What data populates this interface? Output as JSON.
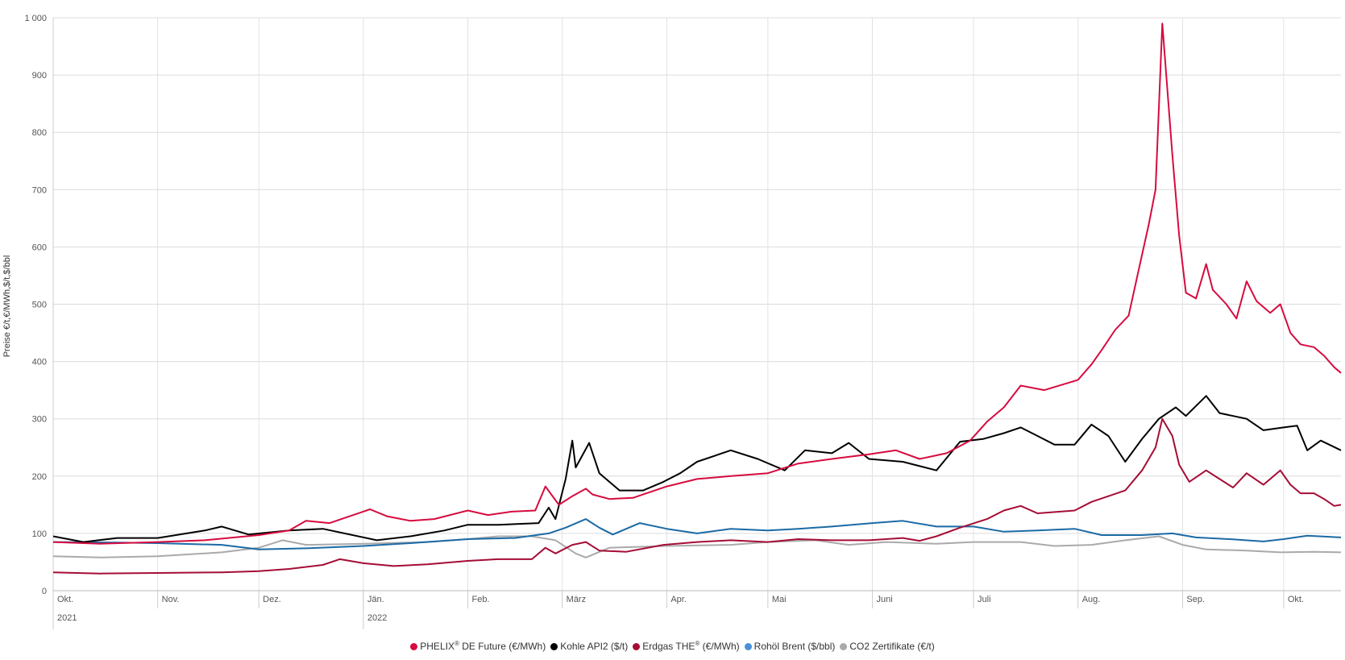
{
  "chart_data": {
    "type": "line",
    "ylabel": "Preise €/t,€/MWh,$/t,$/bbl",
    "ylim": [
      0,
      1000
    ],
    "yticks": [
      0,
      100,
      200,
      300,
      400,
      500,
      600,
      700,
      800,
      900,
      1000
    ],
    "ytick_labels": [
      "0",
      "100",
      "200",
      "300",
      "400",
      "500",
      "600",
      "700",
      "800",
      "900",
      "1 000"
    ],
    "x_range": [
      "2021-10-01",
      "2022-10-18"
    ],
    "month_ticks": [
      {
        "date": "2021-10-01",
        "label": "Okt."
      },
      {
        "date": "2021-11-01",
        "label": "Nov."
      },
      {
        "date": "2021-12-01",
        "label": "Dez."
      },
      {
        "date": "2022-01-01",
        "label": "Jän."
      },
      {
        "date": "2022-02-01",
        "label": "Feb."
      },
      {
        "date": "2022-03-01",
        "label": "März"
      },
      {
        "date": "2022-04-01",
        "label": "Apr."
      },
      {
        "date": "2022-05-01",
        "label": "Mai"
      },
      {
        "date": "2022-06-01",
        "label": "Juni"
      },
      {
        "date": "2022-07-01",
        "label": "Juli"
      },
      {
        "date": "2022-08-01",
        "label": "Aug."
      },
      {
        "date": "2022-09-01",
        "label": "Sep."
      },
      {
        "date": "2022-10-01",
        "label": "Okt."
      }
    ],
    "year_ticks": [
      {
        "date": "2021-10-01",
        "label": "2021"
      },
      {
        "date": "2022-01-01",
        "label": "2022"
      }
    ],
    "grid": true,
    "legend_position": "bottom",
    "series": [
      {
        "name": "PHELIX® DE Future (€/MWh)",
        "legend_main": "PHELIX",
        "legend_sup": "®",
        "legend_rest": " DE Future (€/MWh)",
        "color": "#d60b3f",
        "points": [
          [
            "2021-10-01",
            85
          ],
          [
            "2021-10-15",
            82
          ],
          [
            "2021-11-01",
            85
          ],
          [
            "2021-11-15",
            88
          ],
          [
            "2021-12-01",
            97
          ],
          [
            "2021-12-10",
            105
          ],
          [
            "2021-12-15",
            122
          ],
          [
            "2021-12-22",
            118
          ],
          [
            "2022-01-03",
            142
          ],
          [
            "2022-01-08",
            130
          ],
          [
            "2022-01-15",
            122
          ],
          [
            "2022-01-22",
            125
          ],
          [
            "2022-02-01",
            140
          ],
          [
            "2022-02-07",
            132
          ],
          [
            "2022-02-14",
            138
          ],
          [
            "2022-02-21",
            140
          ],
          [
            "2022-02-24",
            182
          ],
          [
            "2022-02-28",
            150
          ],
          [
            "2022-03-04",
            165
          ],
          [
            "2022-03-08",
            178
          ],
          [
            "2022-03-10",
            168
          ],
          [
            "2022-03-15",
            160
          ],
          [
            "2022-03-22",
            162
          ],
          [
            "2022-04-01",
            182
          ],
          [
            "2022-04-10",
            195
          ],
          [
            "2022-04-20",
            200
          ],
          [
            "2022-05-01",
            205
          ],
          [
            "2022-05-10",
            222
          ],
          [
            "2022-05-20",
            230
          ],
          [
            "2022-05-31",
            238
          ],
          [
            "2022-06-08",
            245
          ],
          [
            "2022-06-15",
            230
          ],
          [
            "2022-06-23",
            240
          ],
          [
            "2022-06-30",
            262
          ],
          [
            "2022-07-05",
            295
          ],
          [
            "2022-07-10",
            320
          ],
          [
            "2022-07-15",
            358
          ],
          [
            "2022-07-22",
            350
          ],
          [
            "2022-08-01",
            368
          ],
          [
            "2022-08-05",
            395
          ],
          [
            "2022-08-08",
            420
          ],
          [
            "2022-08-12",
            455
          ],
          [
            "2022-08-16",
            480
          ],
          [
            "2022-08-19",
            560
          ],
          [
            "2022-08-22",
            640
          ],
          [
            "2022-08-24",
            700
          ],
          [
            "2022-08-26",
            990
          ],
          [
            "2022-08-29",
            760
          ],
          [
            "2022-08-31",
            620
          ],
          [
            "2022-09-02",
            520
          ],
          [
            "2022-09-05",
            510
          ],
          [
            "2022-09-08",
            570
          ],
          [
            "2022-09-10",
            525
          ],
          [
            "2022-09-14",
            500
          ],
          [
            "2022-09-17",
            475
          ],
          [
            "2022-09-20",
            540
          ],
          [
            "2022-09-23",
            505
          ],
          [
            "2022-09-27",
            485
          ],
          [
            "2022-09-30",
            500
          ],
          [
            "2022-10-03",
            450
          ],
          [
            "2022-10-06",
            430
          ],
          [
            "2022-10-10",
            425
          ],
          [
            "2022-10-13",
            410
          ],
          [
            "2022-10-16",
            390
          ],
          [
            "2022-10-18",
            380
          ]
        ]
      },
      {
        "name": "Kohle API2 ($/t)",
        "legend_main": "Kohle API2 ($/t)",
        "legend_sup": "",
        "legend_rest": "",
        "color": "#000000",
        "points": [
          [
            "2021-10-01",
            95
          ],
          [
            "2021-10-10",
            85
          ],
          [
            "2021-10-20",
            92
          ],
          [
            "2021-11-01",
            92
          ],
          [
            "2021-11-15",
            105
          ],
          [
            "2021-11-20",
            112
          ],
          [
            "2021-11-28",
            98
          ],
          [
            "2021-12-10",
            105
          ],
          [
            "2021-12-20",
            108
          ],
          [
            "2022-01-05",
            88
          ],
          [
            "2022-01-15",
            95
          ],
          [
            "2022-01-25",
            105
          ],
          [
            "2022-02-01",
            115
          ],
          [
            "2022-02-10",
            115
          ],
          [
            "2022-02-22",
            118
          ],
          [
            "2022-02-25",
            145
          ],
          [
            "2022-02-27",
            125
          ],
          [
            "2022-03-02",
            195
          ],
          [
            "2022-03-04",
            262
          ],
          [
            "2022-03-05",
            215
          ],
          [
            "2022-03-09",
            258
          ],
          [
            "2022-03-12",
            205
          ],
          [
            "2022-03-18",
            175
          ],
          [
            "2022-03-25",
            175
          ],
          [
            "2022-03-31",
            190
          ],
          [
            "2022-04-05",
            205
          ],
          [
            "2022-04-10",
            225
          ],
          [
            "2022-04-20",
            245
          ],
          [
            "2022-04-28",
            230
          ],
          [
            "2022-05-06",
            210
          ],
          [
            "2022-05-12",
            245
          ],
          [
            "2022-05-20",
            240
          ],
          [
            "2022-05-25",
            258
          ],
          [
            "2022-05-31",
            230
          ],
          [
            "2022-06-10",
            225
          ],
          [
            "2022-06-20",
            210
          ],
          [
            "2022-06-27",
            260
          ],
          [
            "2022-07-04",
            265
          ],
          [
            "2022-07-10",
            275
          ],
          [
            "2022-07-15",
            285
          ],
          [
            "2022-07-20",
            270
          ],
          [
            "2022-07-25",
            255
          ],
          [
            "2022-07-31",
            255
          ],
          [
            "2022-08-05",
            290
          ],
          [
            "2022-08-10",
            270
          ],
          [
            "2022-08-15",
            225
          ],
          [
            "2022-08-20",
            265
          ],
          [
            "2022-08-25",
            300
          ],
          [
            "2022-08-30",
            320
          ],
          [
            "2022-09-02",
            305
          ],
          [
            "2022-09-08",
            340
          ],
          [
            "2022-09-12",
            310
          ],
          [
            "2022-09-20",
            300
          ],
          [
            "2022-09-25",
            280
          ],
          [
            "2022-10-01",
            285
          ],
          [
            "2022-10-05",
            288
          ],
          [
            "2022-10-08",
            245
          ],
          [
            "2022-10-12",
            262
          ],
          [
            "2022-10-18",
            245
          ]
        ]
      },
      {
        "name": "Erdgas THE® (€/MWh)",
        "legend_main": "Erdgas THE",
        "legend_sup": "®",
        "legend_rest": " (€/MWh)",
        "color": "#a50d35",
        "points": [
          [
            "2021-10-01",
            32
          ],
          [
            "2021-10-15",
            30
          ],
          [
            "2021-11-01",
            31
          ],
          [
            "2021-11-20",
            32
          ],
          [
            "2021-12-01",
            34
          ],
          [
            "2021-12-10",
            38
          ],
          [
            "2021-12-20",
            45
          ],
          [
            "2021-12-25",
            55
          ],
          [
            "2022-01-01",
            48
          ],
          [
            "2022-01-10",
            43
          ],
          [
            "2022-01-20",
            46
          ],
          [
            "2022-02-01",
            52
          ],
          [
            "2022-02-10",
            55
          ],
          [
            "2022-02-20",
            55
          ],
          [
            "2022-02-24",
            75
          ],
          [
            "2022-02-27",
            65
          ],
          [
            "2022-03-04",
            80
          ],
          [
            "2022-03-08",
            85
          ],
          [
            "2022-03-12",
            70
          ],
          [
            "2022-03-20",
            68
          ],
          [
            "2022-03-31",
            80
          ],
          [
            "2022-04-10",
            85
          ],
          [
            "2022-04-20",
            88
          ],
          [
            "2022-05-01",
            85
          ],
          [
            "2022-05-10",
            90
          ],
          [
            "2022-05-20",
            88
          ],
          [
            "2022-05-31",
            88
          ],
          [
            "2022-06-10",
            92
          ],
          [
            "2022-06-15",
            87
          ],
          [
            "2022-06-20",
            95
          ],
          [
            "2022-06-27",
            110
          ],
          [
            "2022-07-05",
            125
          ],
          [
            "2022-07-10",
            140
          ],
          [
            "2022-07-15",
            148
          ],
          [
            "2022-07-20",
            135
          ],
          [
            "2022-07-31",
            140
          ],
          [
            "2022-08-05",
            155
          ],
          [
            "2022-08-10",
            165
          ],
          [
            "2022-08-15",
            175
          ],
          [
            "2022-08-20",
            210
          ],
          [
            "2022-08-24",
            250
          ],
          [
            "2022-08-26",
            300
          ],
          [
            "2022-08-29",
            270
          ],
          [
            "2022-08-31",
            220
          ],
          [
            "2022-09-03",
            190
          ],
          [
            "2022-09-08",
            210
          ],
          [
            "2022-09-12",
            195
          ],
          [
            "2022-09-16",
            180
          ],
          [
            "2022-09-20",
            205
          ],
          [
            "2022-09-25",
            185
          ],
          [
            "2022-09-30",
            210
          ],
          [
            "2022-10-03",
            185
          ],
          [
            "2022-10-06",
            170
          ],
          [
            "2022-10-10",
            170
          ],
          [
            "2022-10-13",
            160
          ],
          [
            "2022-10-16",
            148
          ],
          [
            "2022-10-18",
            150
          ]
        ]
      },
      {
        "name": "Rohöl Brent ($/bbl)",
        "legend_main": "Rohöl Brent ($/bbl)",
        "legend_sup": "",
        "legend_rest": "",
        "color": "#1b6aa5",
        "legend_color": "#4a90d9",
        "points": [
          [
            "2021-10-01",
            85
          ],
          [
            "2021-10-20",
            84
          ],
          [
            "2021-11-01",
            83
          ],
          [
            "2021-11-20",
            80
          ],
          [
            "2021-12-01",
            72
          ],
          [
            "2021-12-15",
            74
          ],
          [
            "2022-01-01",
            78
          ],
          [
            "2022-01-15",
            83
          ],
          [
            "2022-02-01",
            90
          ],
          [
            "2022-02-15",
            92
          ],
          [
            "2022-02-25",
            100
          ],
          [
            "2022-03-02",
            110
          ],
          [
            "2022-03-08",
            125
          ],
          [
            "2022-03-12",
            110
          ],
          [
            "2022-03-16",
            98
          ],
          [
            "2022-03-24",
            118
          ],
          [
            "2022-04-01",
            108
          ],
          [
            "2022-04-10",
            100
          ],
          [
            "2022-04-20",
            108
          ],
          [
            "2022-05-01",
            105
          ],
          [
            "2022-05-10",
            108
          ],
          [
            "2022-05-20",
            112
          ],
          [
            "2022-06-01",
            118
          ],
          [
            "2022-06-10",
            122
          ],
          [
            "2022-06-20",
            112
          ],
          [
            "2022-07-01",
            112
          ],
          [
            "2022-07-10",
            103
          ],
          [
            "2022-07-20",
            105
          ],
          [
            "2022-07-31",
            108
          ],
          [
            "2022-08-08",
            97
          ],
          [
            "2022-08-20",
            97
          ],
          [
            "2022-08-29",
            100
          ],
          [
            "2022-09-05",
            93
          ],
          [
            "2022-09-15",
            90
          ],
          [
            "2022-09-25",
            86
          ],
          [
            "2022-10-01",
            90
          ],
          [
            "2022-10-08",
            96
          ],
          [
            "2022-10-18",
            93
          ]
        ]
      },
      {
        "name": "CO2 Zertifikate (€/t)",
        "legend_main": "CO2 Zertifikate (€/t)",
        "legend_sup": "",
        "legend_rest": "",
        "color": "#aaaaaa",
        "points": [
          [
            "2021-10-01",
            60
          ],
          [
            "2021-10-15",
            58
          ],
          [
            "2021-11-01",
            60
          ],
          [
            "2021-11-20",
            67
          ],
          [
            "2021-12-01",
            75
          ],
          [
            "2021-12-08",
            88
          ],
          [
            "2021-12-15",
            80
          ],
          [
            "2022-01-01",
            82
          ],
          [
            "2022-01-20",
            85
          ],
          [
            "2022-02-01",
            90
          ],
          [
            "2022-02-10",
            95
          ],
          [
            "2022-02-20",
            95
          ],
          [
            "2022-02-27",
            88
          ],
          [
            "2022-03-05",
            65
          ],
          [
            "2022-03-08",
            58
          ],
          [
            "2022-03-15",
            75
          ],
          [
            "2022-04-01",
            78
          ],
          [
            "2022-04-20",
            80
          ],
          [
            "2022-05-01",
            85
          ],
          [
            "2022-05-15",
            88
          ],
          [
            "2022-05-25",
            80
          ],
          [
            "2022-06-05",
            85
          ],
          [
            "2022-06-20",
            82
          ],
          [
            "2022-07-01",
            85
          ],
          [
            "2022-07-15",
            85
          ],
          [
            "2022-07-25",
            78
          ],
          [
            "2022-08-05",
            80
          ],
          [
            "2022-08-15",
            88
          ],
          [
            "2022-08-25",
            95
          ],
          [
            "2022-09-01",
            80
          ],
          [
            "2022-09-08",
            72
          ],
          [
            "2022-09-20",
            70
          ],
          [
            "2022-09-30",
            67
          ],
          [
            "2022-10-10",
            68
          ],
          [
            "2022-10-18",
            67
          ]
        ]
      }
    ]
  }
}
